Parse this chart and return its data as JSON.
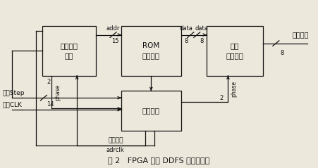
{
  "figsize": [
    4.51,
    2.39
  ],
  "dpi": 100,
  "bg_color": "#ede8dc",
  "line_color": "#111111",
  "text_color": "#111111",
  "caption": "图 2   FPGA 实现 DDFS 的原理框图",
  "boxes": {
    "addr_gen": [
      0.13,
      0.55,
      0.17,
      0.3
    ],
    "rom": [
      0.38,
      0.55,
      0.19,
      0.3
    ],
    "comp": [
      0.65,
      0.55,
      0.18,
      0.3
    ],
    "ctrl": [
      0.38,
      0.22,
      0.19,
      0.24
    ]
  },
  "box_labels": {
    "addr_gen": "地址发生\n单元",
    "rom": "ROM\n存储单元",
    "comp": "补码\n转换单元",
    "ctrl": "控制单元"
  }
}
